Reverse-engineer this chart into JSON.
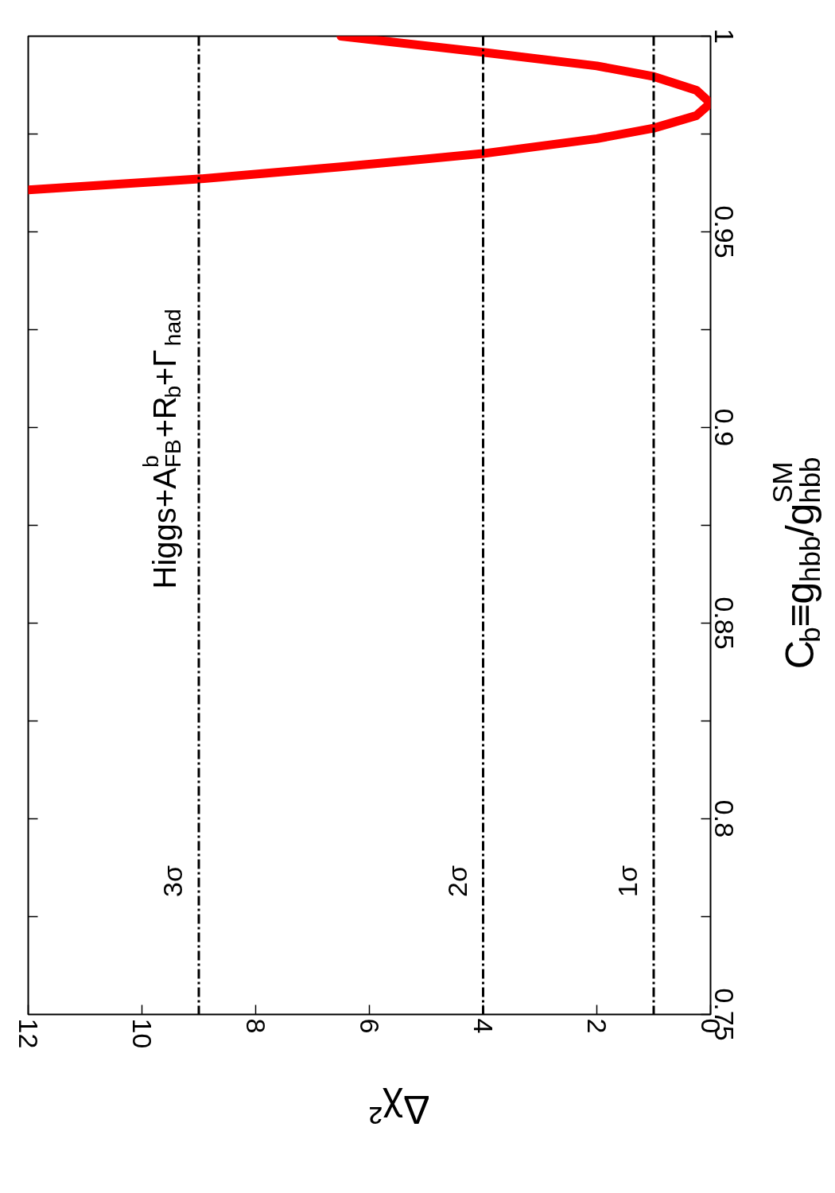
{
  "chart_data": {
    "type": "line",
    "xlabel": "Δχ²",
    "ylabel": "C$_{b}$≡g$_{hbb}$/g$^{SM}$$_{hbb}$",
    "annotations": [
      "Higgs+A$^{b}$$_{FB}$+R$_{b}$+Γ$_{had}$"
    ],
    "series": [
      {
        "color": "#ff0000",
        "x": [
          12,
          9,
          6.5,
          4,
          2,
          1,
          0.25,
          0,
          0.25,
          1,
          2,
          4,
          6.5
        ],
        "values": [
          0.9607,
          0.9635,
          0.9666,
          0.97,
          0.9738,
          0.9765,
          0.9797,
          0.9829,
          0.9862,
          0.9897,
          0.9924,
          0.9959,
          1.0
        ]
      }
    ],
    "xlim": [
      12,
      0
    ],
    "ylim": [
      0.75,
      1
    ],
    "xticks": [
      0,
      2,
      4,
      6,
      8,
      10,
      12
    ],
    "yticks": [
      0.75,
      {
        "value": 0.775,
        "label": null
      },
      0.8,
      {
        "value": 0.825,
        "label": null
      },
      0.85,
      {
        "value": 0.875,
        "label": null
      },
      0.9,
      {
        "value": 0.925,
        "label": null
      },
      0.95,
      {
        "value": 0.975,
        "label": null
      },
      1
    ],
    "ref_lines": [
      {
        "axis": "x",
        "value": 9,
        "label": "3σ",
        "color": "#000000"
      },
      {
        "axis": "x",
        "value": 4,
        "label": "2σ",
        "color": "#000000"
      },
      {
        "axis": "x",
        "value": 1,
        "label": "1σ",
        "color": "#000000"
      }
    ],
    "grid": false
  }
}
